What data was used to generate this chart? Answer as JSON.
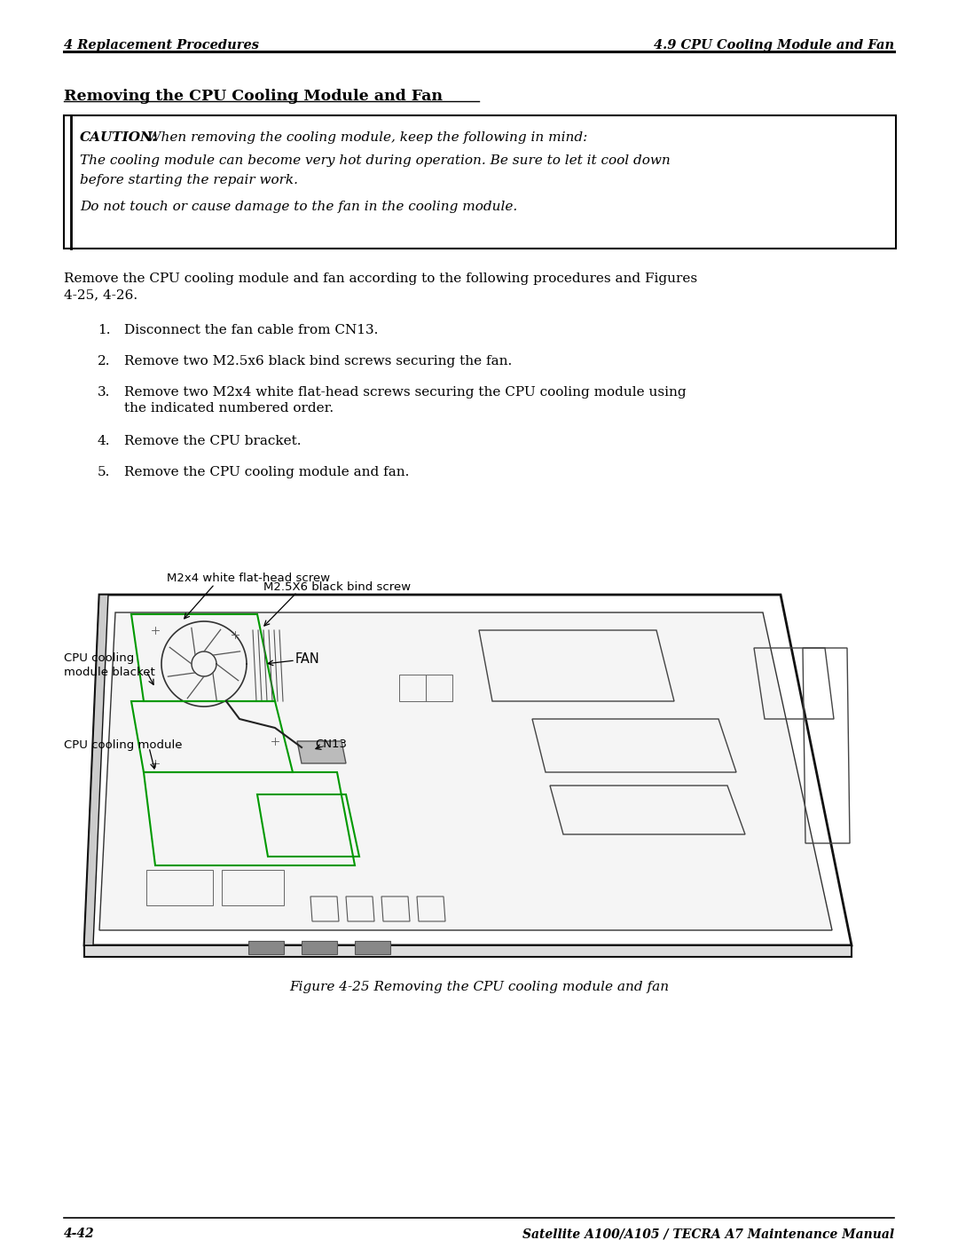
{
  "header_left": "4 Replacement Procedures",
  "header_right": "4.9 CPU Cooling Module and Fan",
  "section_title": "Removing the CPU Cooling Module and Fan",
  "caution_bold": "CAUTION:",
  "caution_line1": " When removing the cooling module, keep the following in mind:",
  "caution_line2": "The cooling module can become very hot during operation. Be sure to let it cool down",
  "caution_line3": "before starting the repair work.",
  "caution_line4": "Do not touch or cause damage to the fan in the cooling module.",
  "intro_line1": "Remove the CPU cooling module and fan according to the following procedures and Figures",
  "intro_line2": "4-25, 4-26.",
  "step1": "Disconnect the fan cable from CN13.",
  "step2": "Remove two M2.5x6 black bind screws securing the fan.",
  "step3a": "Remove two M2x4 white flat-head screws securing the CPU cooling module using",
  "step3b": "the indicated numbered order.",
  "step4": "Remove the CPU bracket.",
  "step5": "Remove the CPU cooling module and fan.",
  "lbl_m2x4": "M2x4 white flat-head screw",
  "lbl_m25x6": "M2.5X6 black bind screw",
  "lbl_cpu_bracket_1": "CPU cooling",
  "lbl_cpu_bracket_2": "module blacket",
  "lbl_fan": "FAN",
  "lbl_cpu_module": "CPU cooling module",
  "lbl_cn13": "CN13",
  "figure_caption": "Figure 4-25 Removing the CPU cooling module and fan",
  "footer_left": "4-42",
  "footer_right": "Satellite A100/A105 / TECRA A7 Maintenance Manual"
}
